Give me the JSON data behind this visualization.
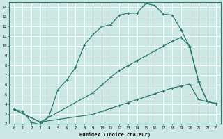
{
  "xlabel": "Humidex (Indice chaleur)",
  "bg_color": "#cce8e4",
  "line_color": "#2d7a6a",
  "grid_color": "#b0d8d0",
  "xlim": [
    -0.5,
    23.5
  ],
  "ylim": [
    2,
    14.5
  ],
  "line1_x": [
    0,
    1,
    2,
    3,
    4,
    5,
    6,
    7,
    8,
    9,
    10,
    11,
    12,
    13,
    14,
    15,
    16,
    17,
    18,
    19,
    20,
    21,
    22,
    23
  ],
  "line1_y": [
    3.5,
    3.3,
    2.2,
    1.9,
    2.8,
    5.5,
    6.5,
    7.8,
    10.1,
    11.2,
    12.0,
    12.2,
    13.2,
    13.4,
    13.4,
    14.4,
    14.2,
    13.3,
    13.2,
    11.7,
    9.9,
    6.3,
    4.3,
    4.1
  ],
  "line2_x": [
    0,
    3,
    9,
    10,
    11,
    12,
    13,
    14,
    15,
    16,
    17,
    18,
    19,
    20,
    21,
    22,
    23
  ],
  "line2_y": [
    3.5,
    2.2,
    5.2,
    6.0,
    6.8,
    7.5,
    8.0,
    8.5,
    9.0,
    9.5,
    10.0,
    10.5,
    10.9,
    10.0,
    6.4,
    4.3,
    4.1
  ],
  "line3_x": [
    0,
    3,
    9,
    10,
    11,
    12,
    13,
    14,
    15,
    16,
    17,
    18,
    19,
    20,
    21,
    22,
    23
  ],
  "line3_y": [
    3.5,
    2.2,
    3.0,
    3.3,
    3.6,
    3.9,
    4.2,
    4.5,
    4.8,
    5.1,
    5.4,
    5.7,
    5.9,
    6.1,
    4.5,
    4.3,
    4.1
  ],
  "yticks": [
    2,
    3,
    4,
    5,
    6,
    7,
    8,
    9,
    10,
    11,
    12,
    13,
    14
  ],
  "xticks": [
    0,
    1,
    2,
    3,
    4,
    5,
    6,
    7,
    8,
    9,
    10,
    11,
    12,
    13,
    14,
    15,
    16,
    17,
    18,
    19,
    20,
    21,
    22,
    23
  ]
}
